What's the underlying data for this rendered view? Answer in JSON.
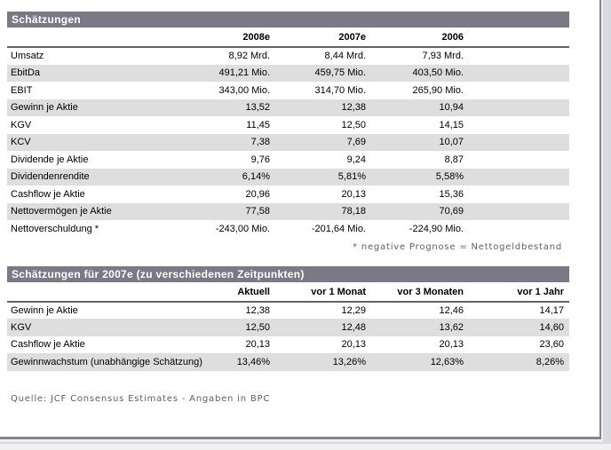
{
  "colors": {
    "bar_background": "#797a85",
    "bar_text": "#ffffff",
    "row_stripe": "#dedede",
    "panel_border": "#85858f",
    "outer_strip": "#d9d9e0",
    "page_background": "#f1f0f1",
    "muted_text": "#5f5f5f"
  },
  "estimates_table": {
    "title": "Schätzungen",
    "columns": [
      "2008e",
      "2007e",
      "2006"
    ],
    "rows": [
      {
        "label": "Umsatz",
        "values": [
          "8,92 Mrd.",
          "8,44 Mrd.",
          "7,93 Mrd."
        ]
      },
      {
        "label": "EbitDa",
        "values": [
          "491,21 Mio.",
          "459,75 Mio.",
          "403,50 Mio."
        ]
      },
      {
        "label": "EBIT",
        "values": [
          "343,00 Mio.",
          "314,70 Mio.",
          "265,90 Mio."
        ]
      },
      {
        "label": "Gewinn je Aktie",
        "values": [
          "13,52",
          "12,38",
          "10,94"
        ]
      },
      {
        "label": "KGV",
        "values": [
          "11,45",
          "12,50",
          "14,15"
        ]
      },
      {
        "label": "KCV",
        "values": [
          "7,38",
          "7,69",
          "10,07"
        ]
      },
      {
        "label": "Dividende je Aktie",
        "values": [
          "9,76",
          "9,24",
          "8,87"
        ]
      },
      {
        "label": "Dividendenrendite",
        "values": [
          "6,14%",
          "5,81%",
          "5,58%"
        ]
      },
      {
        "label": "Cashflow je Aktie",
        "values": [
          "20,96",
          "20,13",
          "15,36"
        ]
      },
      {
        "label": "Nettovermögen je Aktie",
        "values": [
          "77,58",
          "78,18",
          "70,69"
        ]
      },
      {
        "label": "Nettoverschuldung *",
        "values": [
          "-243,00 Mio.",
          "-201,64 Mio.",
          "-224,90 Mio."
        ]
      }
    ],
    "footnote": "* negative Prognose = Nettogeldbestand"
  },
  "history_table": {
    "title": "Schätzungen für 2007e (zu verschiedenen Zeitpunkten)",
    "columns": [
      "Aktuell",
      "vor 1 Monat",
      "vor 3 Monaten",
      "vor 1 Jahr"
    ],
    "rows": [
      {
        "label": "Gewinn je Aktie",
        "values": [
          "12,38",
          "12,29",
          "12,46",
          "14,17"
        ]
      },
      {
        "label": "KGV",
        "values": [
          "12,50",
          "12,48",
          "13,62",
          "14,60"
        ]
      },
      {
        "label": "Cashflow je Aktie",
        "values": [
          "20,13",
          "20,13",
          "20,13",
          "23,60"
        ]
      },
      {
        "label": "Gewinnwachstum (unabhängige Schätzung)",
        "values": [
          "13,46%",
          "13,26%",
          "12,63%",
          "8,26%"
        ]
      }
    ]
  },
  "source": "Quelle: JCF Consensus Estimates - Angaben in BPC"
}
